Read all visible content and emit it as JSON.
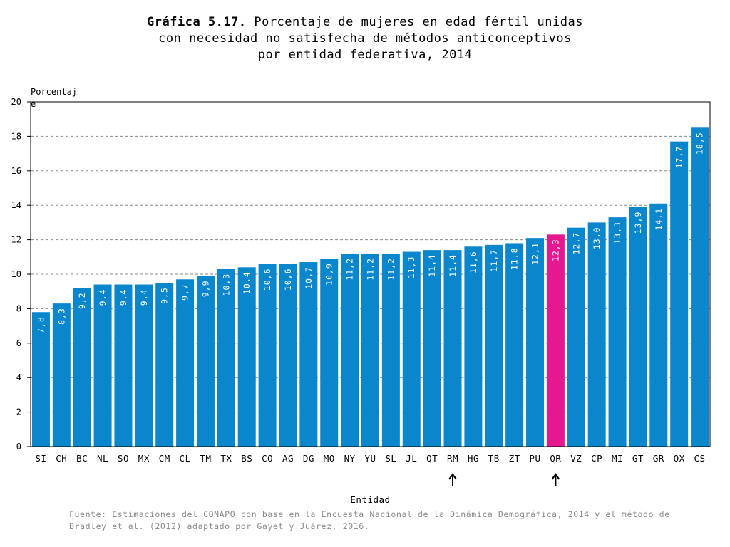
{
  "title": {
    "bold": "Gráfica 5.17.",
    "line1": "Porcentaje de mujeres en edad fértil unidas",
    "line2": "con necesidad no satisfecha de métodos anticonceptivos",
    "line3": "por entidad federativa, 2014"
  },
  "source": "Fuente: Estimaciones del CONAPO con base en la Encuesta Nacional de la Dinámica Demográfica, 2014 y el método de Bradley et al. (2012) adaptado por Gayet y Juárez, 2016.",
  "colors": {
    "bar": "#0a86cd",
    "highlight": "#e5198f",
    "grid": "#888888"
  },
  "chart_data": {
    "type": "bar",
    "title": "Porcentaje de mujeres en edad fértil unidas con necesidad no satisfecha de métodos anticonceptivos por entidad federativa, 2014",
    "xlabel": "Entidad",
    "ylabel": "Porcentaje",
    "ylim": [
      0,
      20
    ],
    "yticks": [
      0,
      2,
      4,
      6,
      8,
      10,
      12,
      14,
      16,
      18,
      20
    ],
    "grid": true,
    "categories": [
      "SI",
      "CH",
      "BC",
      "NL",
      "SO",
      "MX",
      "CM",
      "CL",
      "TM",
      "TX",
      "BS",
      "CO",
      "AG",
      "DG",
      "MO",
      "NY",
      "YU",
      "SL",
      "JL",
      "QT",
      "RM",
      "HG",
      "TB",
      "ZT",
      "PU",
      "QR",
      "VZ",
      "CP",
      "MI",
      "GT",
      "GR",
      "OX",
      "CS"
    ],
    "values": [
      7.8,
      8.3,
      9.2,
      9.4,
      9.4,
      9.4,
      9.5,
      9.7,
      9.9,
      10.3,
      10.4,
      10.6,
      10.6,
      10.7,
      10.9,
      11.2,
      11.2,
      11.2,
      11.3,
      11.4,
      11.4,
      11.6,
      11.7,
      11.8,
      12.1,
      12.3,
      12.7,
      13.0,
      13.3,
      13.9,
      14.1,
      17.7,
      18.5
    ],
    "data_labels": [
      "7,8",
      "8,3",
      "9,2",
      "9,4",
      "9,4",
      "9,4",
      "9,5",
      "9,7",
      "9,9",
      "10,3",
      "10,4",
      "10,6",
      "10,6",
      "10,7",
      "10,9",
      "11,2",
      "11,2",
      "11,2",
      "11,3",
      "11,4",
      "11,4",
      "11,6",
      "11,7",
      "11,8",
      "12,1",
      "12,3",
      "12,7",
      "13,0",
      "13,3",
      "13,9",
      "14,1",
      "17,7",
      "18,5"
    ],
    "highlight": "QR",
    "arrows": [
      "RM",
      "QR"
    ]
  }
}
